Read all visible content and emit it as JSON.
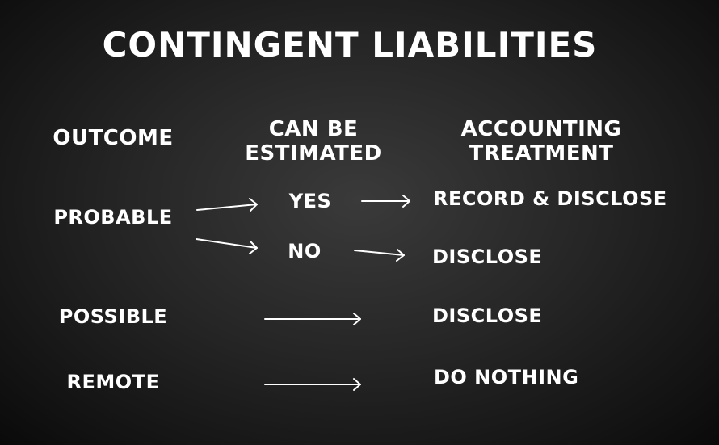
{
  "title": "CONTINGENT LIABILITIES",
  "headers": {
    "outcome": "OUTCOME",
    "estimated": [
      "CAN BE",
      "ESTIMATED"
    ],
    "treatment": [
      "ACCOUNTING",
      "TREATMENT"
    ]
  },
  "rows": {
    "probable": {
      "outcome": "PROBABLE",
      "yes": {
        "estimated": "YES",
        "treatment": "RECORD & DISCLOSE"
      },
      "no": {
        "estimated": "NO",
        "treatment": "DISCLOSE"
      }
    },
    "possible": {
      "outcome": "POSSIBLE",
      "treatment": "DISCLOSE"
    },
    "remote": {
      "outcome": "REMOTE",
      "treatment": "DO NOTHING"
    }
  },
  "colors": {
    "background": "#1e1e1e",
    "text": "#ffffff",
    "arrows": "#ffffff"
  }
}
